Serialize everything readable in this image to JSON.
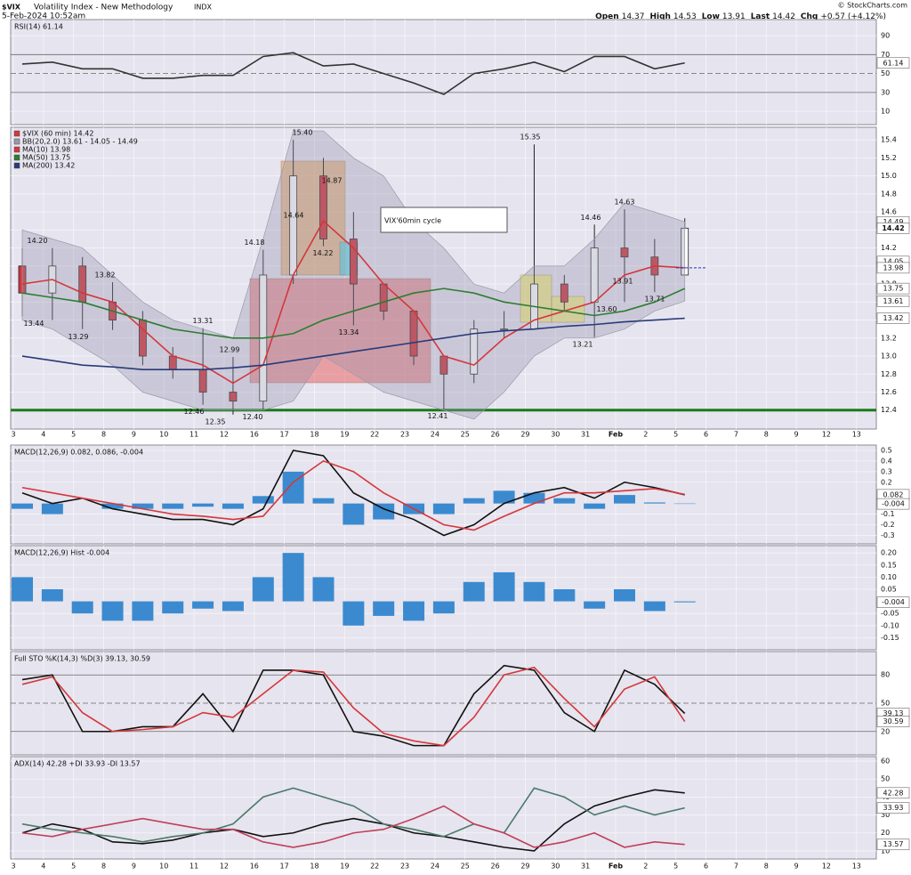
{
  "header": {
    "symbol": "$VIX",
    "name": "Volatility Index - New Methodology",
    "exchange": "INDX",
    "date": "5-Feb-2024 10:52am",
    "source": "© StockCharts.com",
    "open_label": "Open",
    "open": 14.37,
    "high_label": "High",
    "high": 14.53,
    "low_label": "Low",
    "low": 13.91,
    "last_label": "Last",
    "last": 14.42,
    "chg_label": "Chg",
    "chg": "+0.57 (+4.12%)"
  },
  "chart_data": [
    {
      "type": "line",
      "title": "RSI(14) 61.14",
      "ylim": [
        -4,
        107
      ],
      "yticks": [
        10,
        30,
        50,
        70,
        90
      ],
      "levels": [
        70,
        50,
        30
      ],
      "level_color": "#666666",
      "series": [
        {
          "color": "#333333",
          "values": [
            60,
            62,
            55,
            55,
            45,
            45,
            48,
            48,
            68,
            72,
            58,
            60,
            50,
            40,
            28,
            50,
            55,
            62,
            52,
            68,
            68,
            55,
            61.14,
            null,
            null,
            null,
            null,
            null,
            null
          ]
        }
      ],
      "right_labels": [
        61.14
      ]
    },
    {
      "type": "candlestick",
      "note": "VIX'60min cycle",
      "categories": [
        "3",
        "4",
        "5",
        "8",
        "9",
        "10",
        "11",
        "12",
        "16",
        "17",
        "18",
        "19",
        "22",
        "23",
        "24",
        "25",
        "26",
        "29",
        "30",
        "31",
        "Feb",
        "2",
        "5",
        "6",
        "7",
        "8",
        "9",
        "12",
        "13"
      ],
      "ylim": [
        12.19,
        15.54
      ],
      "yticks": [
        12.4,
        12.6,
        12.8,
        {
          "value": 13,
          "label": "13.0"
        },
        13.2,
        13.4,
        13.6,
        13.8,
        {
          "value": 14,
          "label": "14.0"
        },
        14.2,
        14.4,
        14.6,
        14.8,
        {
          "value": 15,
          "label": "15.0"
        },
        15.2,
        15.4
      ],
      "levels": [
        12.4
      ],
      "level_color": "#1a7a1a",
      "series": [
        {
          "name": "$VIX (60 min) 14.42",
          "color": "#d4373c",
          "up_color": "#ffffff",
          "open": [
            14.0,
            13.7,
            14.0,
            13.6,
            13.4,
            13.0,
            12.85,
            12.6,
            12.5,
            13.9,
            15.0,
            14.3,
            13.8,
            13.5,
            13.0,
            12.8,
            13.3,
            13.3,
            13.8,
            13.6,
            14.2,
            14.1,
            13.9,
            null,
            null,
            null,
            null,
            null,
            null
          ],
          "high": [
            14.2,
            14.2,
            14.1,
            13.82,
            13.5,
            13.1,
            13.31,
            12.99,
            14.18,
            15.4,
            15.2,
            14.6,
            13.8,
            13.5,
            13.0,
            13.4,
            13.5,
            15.35,
            13.9,
            14.46,
            14.63,
            14.3,
            14.53,
            null,
            null,
            null,
            null,
            null,
            null
          ],
          "low": [
            13.44,
            13.4,
            13.3,
            13.29,
            12.9,
            12.75,
            12.46,
            12.35,
            12.4,
            13.8,
            14.22,
            13.34,
            13.4,
            12.9,
            12.41,
            12.7,
            13.2,
            13.3,
            13.5,
            13.21,
            13.6,
            13.71,
            13.91,
            null,
            null,
            null,
            null,
            null,
            null
          ],
          "close": [
            13.7,
            14.0,
            13.6,
            13.4,
            13.0,
            12.85,
            12.6,
            12.5,
            13.9,
            15.0,
            14.3,
            13.8,
            13.5,
            13.0,
            12.8,
            13.3,
            13.3,
            13.8,
            13.6,
            14.2,
            14.1,
            13.9,
            14.42,
            null,
            null,
            null,
            null,
            null,
            null
          ]
        },
        {
          "name": "BB(20,2.0) 13.61 - 14.05 - 14.49",
          "color": "#9a9aa8",
          "upper": [
            14.4,
            14.3,
            14.2,
            13.9,
            13.6,
            13.4,
            13.3,
            13.2,
            14.3,
            15.5,
            15.5,
            15.2,
            15.0,
            14.5,
            14.2,
            13.8,
            13.7,
            14.0,
            14.0,
            14.3,
            14.7,
            14.6,
            14.49,
            null,
            null,
            null,
            null,
            null,
            null
          ],
          "lower": [
            13.4,
            13.3,
            13.1,
            12.9,
            12.6,
            12.5,
            12.4,
            12.4,
            12.4,
            12.5,
            13.0,
            12.8,
            12.6,
            12.5,
            12.4,
            12.3,
            12.6,
            13.0,
            13.2,
            13.2,
            13.3,
            13.5,
            13.61,
            null,
            null,
            null,
            null,
            null,
            null
          ]
        },
        {
          "name": "MA(10) 13.98",
          "color": "#d4373c",
          "values": [
            13.8,
            13.85,
            13.7,
            13.6,
            13.3,
            13.0,
            12.9,
            12.7,
            12.9,
            13.9,
            14.5,
            14.2,
            13.8,
            13.5,
            13.0,
            12.9,
            13.2,
            13.4,
            13.5,
            13.6,
            13.9,
            14.0,
            13.98,
            null,
            null,
            null,
            null,
            null,
            null
          ]
        },
        {
          "name": "MA(50) 13.75",
          "color": "#2e7d32",
          "values": [
            13.7,
            13.65,
            13.6,
            13.5,
            13.4,
            13.3,
            13.25,
            13.2,
            13.2,
            13.25,
            13.4,
            13.5,
            13.6,
            13.7,
            13.75,
            13.7,
            13.6,
            13.55,
            13.5,
            13.45,
            13.5,
            13.6,
            13.75,
            null,
            null,
            null,
            null,
            null,
            null
          ]
        },
        {
          "name": "MA(200) 13.42",
          "color": "#283a78",
          "values": [
            13.0,
            12.95,
            12.9,
            12.88,
            12.85,
            12.85,
            12.85,
            12.87,
            12.9,
            12.95,
            13.0,
            13.05,
            13.1,
            13.15,
            13.2,
            13.25,
            13.28,
            13.3,
            13.33,
            13.35,
            13.38,
            13.4,
            13.42,
            null,
            null,
            null,
            null,
            null,
            null
          ]
        }
      ],
      "annotations": [
        {
          "value": 14.2,
          "label": "14.20"
        },
        13.44,
        13.82,
        13.29,
        13.31,
        12.99,
        12.46,
        12.35,
        {
          "value": 12.4,
          "label": "12.40"
        },
        14.18,
        {
          "value": 15.4,
          "label": "15.40"
        },
        14.64,
        14.87,
        14.22,
        13.34,
        12.41,
        15.35,
        14.46,
        14.63,
        13.91,
        {
          "value": 13.6,
          "label": "13.60"
        },
        13.71,
        13.21
      ],
      "right_labels": [
        14.49,
        14.42,
        14.05,
        13.98,
        13.75,
        13.61,
        13.42
      ]
    },
    {
      "type": "line",
      "title": "MACD(12,26,9) 0.082, 0.086, -0.004",
      "ylim": [
        -0.38,
        0.55
      ],
      "yticks": [
        0.5,
        0.4,
        0.3,
        0.2,
        -0.1,
        -0.2,
        -0.3
      ],
      "series": [
        {
          "type": "bar",
          "color": "#3b8ad0",
          "values": [
            -0.05,
            -0.1,
            0.0,
            -0.05,
            -0.05,
            -0.05,
            -0.03,
            -0.05,
            0.07,
            0.3,
            0.05,
            -0.2,
            -0.15,
            -0.1,
            -0.1,
            0.05,
            0.12,
            0.1,
            0.05,
            -0.05,
            0.08,
            0.01,
            -0.004,
            null,
            null,
            null,
            null,
            null,
            null
          ]
        },
        {
          "color": "#111111",
          "values": [
            0.1,
            0.0,
            0.05,
            -0.05,
            -0.1,
            -0.15,
            -0.15,
            -0.2,
            -0.05,
            0.5,
            0.45,
            0.1,
            -0.05,
            -0.15,
            -0.3,
            -0.2,
            0.0,
            0.1,
            0.15,
            0.05,
            0.2,
            0.15,
            0.082,
            null,
            null,
            null,
            null,
            null,
            null
          ]
        },
        {
          "color": "#d4373c",
          "values": [
            0.15,
            0.1,
            0.05,
            0.0,
            -0.05,
            -0.1,
            -0.12,
            -0.15,
            -0.12,
            0.2,
            0.4,
            0.3,
            0.1,
            -0.05,
            -0.2,
            -0.25,
            -0.12,
            0.0,
            0.1,
            0.1,
            0.12,
            0.14,
            0.086,
            null,
            null,
            null,
            null,
            null,
            null
          ]
        }
      ],
      "right_labels": [
        0.082,
        -0.004
      ]
    },
    {
      "type": "bar",
      "title": "MACD(12,26,9) Hist -0.004",
      "ylim": [
        -0.2,
        0.23
      ],
      "yticks": [
        {
          "value": 0.2,
          "label": "0.20"
        },
        0.15,
        {
          "value": 0.1,
          "label": "0.10"
        },
        0.05,
        -0.05,
        {
          "value": -0.1,
          "label": "-0.10"
        },
        -0.15
      ],
      "series": [
        {
          "color": "#3b8ad0",
          "values": [
            0.1,
            0.05,
            -0.05,
            -0.08,
            -0.08,
            -0.05,
            -0.03,
            -0.04,
            0.1,
            0.2,
            0.1,
            -0.1,
            -0.06,
            -0.08,
            -0.05,
            0.08,
            0.12,
            0.08,
            0.05,
            -0.03,
            0.05,
            -0.04,
            -0.004,
            null,
            null,
            null,
            null,
            null,
            null
          ]
        }
      ],
      "right_labels": [
        -0.004
      ]
    },
    {
      "type": "line",
      "title": "Full STO %K(14,3) %D(3) 39.13, 30.59",
      "ylim": [
        -4.8,
        104.8
      ],
      "yticks": [
        20,
        50,
        80
      ],
      "levels": [
        80,
        50,
        20
      ],
      "level_color": "#666666",
      "series": [
        {
          "color": "#111111",
          "values": [
            75,
            80,
            20,
            20,
            25,
            25,
            60,
            20,
            85,
            85,
            80,
            20,
            15,
            5,
            5,
            60,
            90,
            85,
            40,
            20,
            85,
            70,
            39.13,
            null,
            null,
            null,
            null,
            null,
            null
          ]
        },
        {
          "color": "#d4373c",
          "values": [
            70,
            78,
            40,
            20,
            22,
            25,
            40,
            35,
            60,
            85,
            83,
            45,
            18,
            10,
            5,
            35,
            80,
            88,
            55,
            25,
            65,
            78,
            30.59,
            null,
            null,
            null,
            null,
            null,
            null
          ]
        }
      ],
      "right_labels": [
        39.13,
        30.59
      ]
    },
    {
      "type": "line",
      "title": "ADX(14) 42.28 +DI 33.93 -DI 13.57",
      "ylim": [
        5.5,
        62.5
      ],
      "yticks": [
        10,
        20,
        30,
        40,
        50,
        60
      ],
      "categories": [
        "3",
        "4",
        "5",
        "8",
        "9",
        "10",
        "11",
        "12",
        "16",
        "17",
        "18",
        "19",
        "22",
        "23",
        "24",
        "25",
        "26",
        "29",
        "30",
        "31",
        "Feb",
        "2",
        "5",
        "6",
        "7",
        "8",
        "9",
        "12",
        "13"
      ],
      "series": [
        {
          "color": "#111111",
          "values": [
            20,
            25,
            22,
            15,
            14,
            16,
            20,
            22,
            18,
            20,
            25,
            28,
            25,
            20,
            18,
            15,
            12,
            10,
            25,
            35,
            40,
            44,
            42.28,
            null,
            null,
            null,
            null,
            null,
            null
          ]
        },
        {
          "color": "#4a7a6a",
          "values": [
            25,
            22,
            20,
            18,
            15,
            18,
            20,
            25,
            40,
            45,
            40,
            35,
            25,
            22,
            18,
            25,
            20,
            45,
            40,
            30,
            35,
            30,
            33.93,
            null,
            null,
            null,
            null,
            null,
            null
          ]
        },
        {
          "color": "#c0405a",
          "values": [
            20,
            18,
            22,
            25,
            28,
            25,
            22,
            22,
            15,
            12,
            15,
            20,
            22,
            28,
            35,
            25,
            20,
            12,
            15,
            20,
            12,
            15,
            13.57,
            null,
            null,
            null,
            null,
            null,
            null
          ]
        }
      ],
      "right_labels": [
        42.28,
        33.93,
        13.57
      ]
    }
  ]
}
